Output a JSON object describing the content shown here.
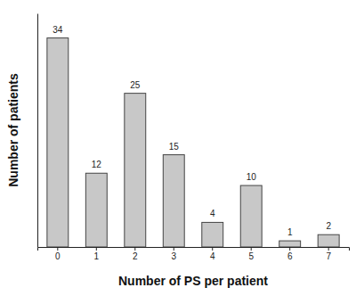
{
  "chart_data": {
    "type": "bar",
    "x_label": "Number of PS per patient",
    "y_label": "Number of patients",
    "categories": [
      "0",
      "1",
      "2",
      "3",
      "4",
      "5",
      "6",
      "7"
    ],
    "values": [
      34,
      12,
      25,
      15,
      4,
      10,
      1,
      2
    ],
    "color": "#c8c8c8",
    "ylim": [
      0,
      38
    ],
    "grid": false,
    "data_labels": true,
    "tick_labels": "x"
  }
}
